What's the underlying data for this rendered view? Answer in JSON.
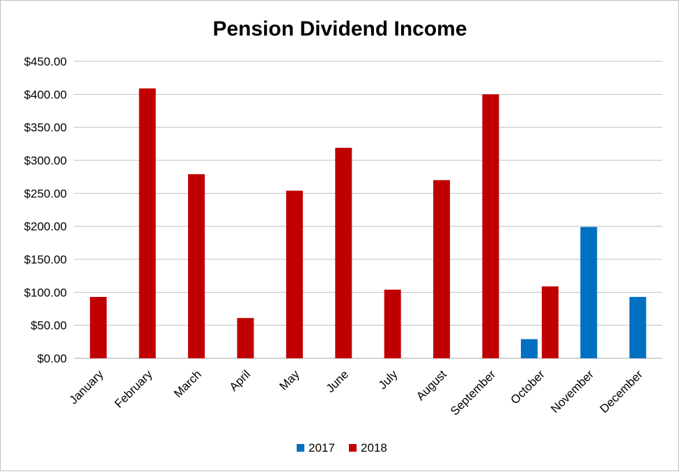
{
  "chart_data": {
    "type": "bar",
    "title": "Pension Dividend Income",
    "xlabel": "",
    "ylabel": "",
    "categories": [
      "January",
      "February",
      "March",
      "April",
      "May",
      "June",
      "July",
      "August",
      "September",
      "October",
      "November",
      "December"
    ],
    "series": [
      {
        "name": "2017",
        "color": "#0070c0",
        "values": [
          null,
          null,
          null,
          null,
          null,
          null,
          null,
          null,
          null,
          29,
          199,
          93
        ]
      },
      {
        "name": "2018",
        "color": "#c00000",
        "values": [
          93,
          409,
          279,
          61,
          254,
          319,
          104,
          270,
          400,
          109,
          null,
          null
        ]
      }
    ],
    "ylim": [
      0,
      450
    ],
    "yticks": [
      0,
      50,
      100,
      150,
      200,
      250,
      300,
      350,
      400,
      450
    ],
    "ytick_labels": [
      "$0.00",
      "$50.00",
      "$100.00",
      "$150.00",
      "$200.00",
      "$250.00",
      "$300.00",
      "$350.00",
      "$400.00",
      "$450.00"
    ],
    "grid": true,
    "legend_position": "bottom"
  }
}
